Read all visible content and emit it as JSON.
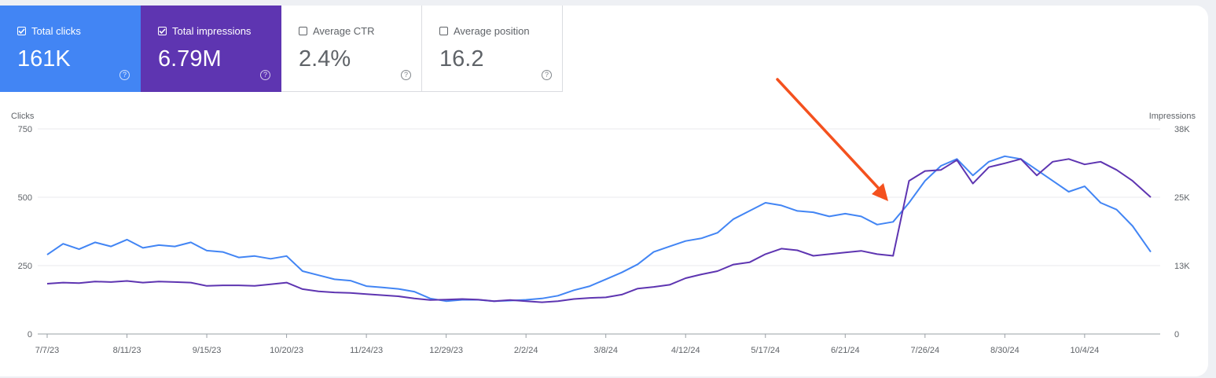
{
  "metrics": [
    {
      "label": "Total clicks",
      "value": "161K",
      "checked": true
    },
    {
      "label": "Total impressions",
      "value": "6.79M",
      "checked": true
    },
    {
      "label": "Average CTR",
      "value": "2.4%",
      "checked": false
    },
    {
      "label": "Average position",
      "value": "16.2",
      "checked": false
    }
  ],
  "help_glyph": "?",
  "chart_data": {
    "type": "line",
    "ylabel_left": "Clicks",
    "ylabel_right": "Impressions",
    "yticks_left": [
      "0",
      "250",
      "500",
      "750"
    ],
    "yticks_right": [
      "0",
      "13K",
      "25K",
      "38K"
    ],
    "ylim_left": [
      0,
      750
    ],
    "ylim_right": [
      0,
      37500
    ],
    "xticks": [
      "7/7/23",
      "8/11/23",
      "9/15/23",
      "10/20/23",
      "11/24/23",
      "12/29/23",
      "2/2/24",
      "3/8/24",
      "4/12/24",
      "5/17/24",
      "6/21/24",
      "7/26/24",
      "8/30/24",
      "10/4/24"
    ],
    "x_range": [
      "7/7/23",
      "11/2/24"
    ],
    "grid": true,
    "annotation": "arrow pointing to mid-July 2024 jump",
    "series": [
      {
        "axis": "left",
        "color": "#4285f4",
        "points": [
          [
            "7/7/23",
            290
          ],
          [
            "7/14/23",
            330
          ],
          [
            "7/21/23",
            310
          ],
          [
            "7/28/23",
            335
          ],
          [
            "8/4/23",
            320
          ],
          [
            "8/11/23",
            345
          ],
          [
            "8/18/23",
            315
          ],
          [
            "8/25/23",
            325
          ],
          [
            "9/1/23",
            320
          ],
          [
            "9/8/23",
            335
          ],
          [
            "9/15/23",
            305
          ],
          [
            "9/22/23",
            300
          ],
          [
            "9/29/23",
            280
          ],
          [
            "10/6/23",
            285
          ],
          [
            "10/13/23",
            275
          ],
          [
            "10/20/23",
            285
          ],
          [
            "10/27/23",
            230
          ],
          [
            "11/3/23",
            215
          ],
          [
            "11/10/23",
            200
          ],
          [
            "11/17/23",
            195
          ],
          [
            "11/24/23",
            175
          ],
          [
            "12/1/23",
            170
          ],
          [
            "12/8/23",
            165
          ],
          [
            "12/15/23",
            155
          ],
          [
            "12/22/23",
            130
          ],
          [
            "12/29/23",
            120
          ],
          [
            "1/5/24",
            125
          ],
          [
            "1/12/24",
            125
          ],
          [
            "1/19/24",
            120
          ],
          [
            "1/26/24",
            122
          ],
          [
            "2/2/24",
            125
          ],
          [
            "2/9/24",
            130
          ],
          [
            "2/16/24",
            140
          ],
          [
            "2/23/24",
            160
          ],
          [
            "3/1/24",
            175
          ],
          [
            "3/8/24",
            200
          ],
          [
            "3/15/24",
            225
          ],
          [
            "3/22/24",
            255
          ],
          [
            "3/29/24",
            300
          ],
          [
            "4/5/24",
            320
          ],
          [
            "4/12/24",
            340
          ],
          [
            "4/19/24",
            350
          ],
          [
            "4/26/24",
            370
          ],
          [
            "5/3/24",
            420
          ],
          [
            "5/10/24",
            450
          ],
          [
            "5/17/24",
            480
          ],
          [
            "5/24/24",
            470
          ],
          [
            "5/31/24",
            450
          ],
          [
            "6/7/24",
            445
          ],
          [
            "6/14/24",
            430
          ],
          [
            "6/21/24",
            440
          ],
          [
            "6/28/24",
            430
          ],
          [
            "7/5/24",
            400
          ],
          [
            "7/12/24",
            410
          ],
          [
            "7/19/24",
            480
          ],
          [
            "7/26/24",
            560
          ],
          [
            "8/2/24",
            615
          ],
          [
            "8/9/24",
            640
          ],
          [
            "8/16/24",
            580
          ],
          [
            "8/23/24",
            630
          ],
          [
            "8/30/24",
            650
          ],
          [
            "9/6/24",
            640
          ],
          [
            "9/13/24",
            600
          ],
          [
            "9/20/24",
            560
          ],
          [
            "9/27/24",
            520
          ],
          [
            "10/4/24",
            540
          ],
          [
            "10/11/24",
            480
          ],
          [
            "10/18/24",
            455
          ],
          [
            "10/25/24",
            395
          ],
          [
            "11/2/24",
            300
          ]
        ]
      },
      {
        "axis": "right",
        "color": "#5e35b1",
        "points": [
          [
            "7/7/23",
            9200
          ],
          [
            "7/14/23",
            9400
          ],
          [
            "7/21/23",
            9300
          ],
          [
            "7/28/23",
            9600
          ],
          [
            "8/4/23",
            9500
          ],
          [
            "8/11/23",
            9700
          ],
          [
            "8/18/23",
            9400
          ],
          [
            "8/25/23",
            9600
          ],
          [
            "9/1/23",
            9500
          ],
          [
            "9/8/23",
            9400
          ],
          [
            "9/15/23",
            8800
          ],
          [
            "9/22/23",
            8900
          ],
          [
            "9/29/23",
            8900
          ],
          [
            "10/6/23",
            8800
          ],
          [
            "10/13/23",
            9100
          ],
          [
            "10/20/23",
            9400
          ],
          [
            "10/27/23",
            8200
          ],
          [
            "11/3/23",
            7800
          ],
          [
            "11/10/23",
            7600
          ],
          [
            "11/17/23",
            7500
          ],
          [
            "11/24/23",
            7300
          ],
          [
            "12/1/23",
            7100
          ],
          [
            "12/8/23",
            6900
          ],
          [
            "12/15/23",
            6500
          ],
          [
            "12/22/23",
            6200
          ],
          [
            "12/29/23",
            6300
          ],
          [
            "1/5/24",
            6400
          ],
          [
            "1/12/24",
            6300
          ],
          [
            "1/19/24",
            6000
          ],
          [
            "1/26/24",
            6200
          ],
          [
            "2/2/24",
            6000
          ],
          [
            "2/9/24",
            5800
          ],
          [
            "2/16/24",
            6000
          ],
          [
            "2/23/24",
            6400
          ],
          [
            "3/1/24",
            6600
          ],
          [
            "3/8/24",
            6700
          ],
          [
            "3/15/24",
            7200
          ],
          [
            "3/22/24",
            8300
          ],
          [
            "3/29/24",
            8600
          ],
          [
            "4/5/24",
            9000
          ],
          [
            "4/12/24",
            10200
          ],
          [
            "4/19/24",
            10900
          ],
          [
            "4/26/24",
            11500
          ],
          [
            "5/3/24",
            12700
          ],
          [
            "5/10/24",
            13100
          ],
          [
            "5/17/24",
            14600
          ],
          [
            "5/24/24",
            15600
          ],
          [
            "5/31/24",
            15300
          ],
          [
            "6/7/24",
            14300
          ],
          [
            "6/14/24",
            14600
          ],
          [
            "6/21/24",
            14900
          ],
          [
            "6/28/24",
            15200
          ],
          [
            "7/5/24",
            14600
          ],
          [
            "7/12/24",
            14300
          ],
          [
            "7/19/24",
            28000
          ],
          [
            "7/26/24",
            29800
          ],
          [
            "8/2/24",
            30000
          ],
          [
            "8/9/24",
            31800
          ],
          [
            "8/16/24",
            27500
          ],
          [
            "8/23/24",
            30500
          ],
          [
            "8/30/24",
            31200
          ],
          [
            "9/6/24",
            32000
          ],
          [
            "9/13/24",
            29000
          ],
          [
            "9/20/24",
            31500
          ],
          [
            "9/27/24",
            32000
          ],
          [
            "10/4/24",
            31000
          ],
          [
            "10/11/24",
            31500
          ],
          [
            "10/18/24",
            30000
          ],
          [
            "10/25/24",
            28000
          ],
          [
            "11/2/24",
            25000
          ]
        ]
      }
    ]
  }
}
